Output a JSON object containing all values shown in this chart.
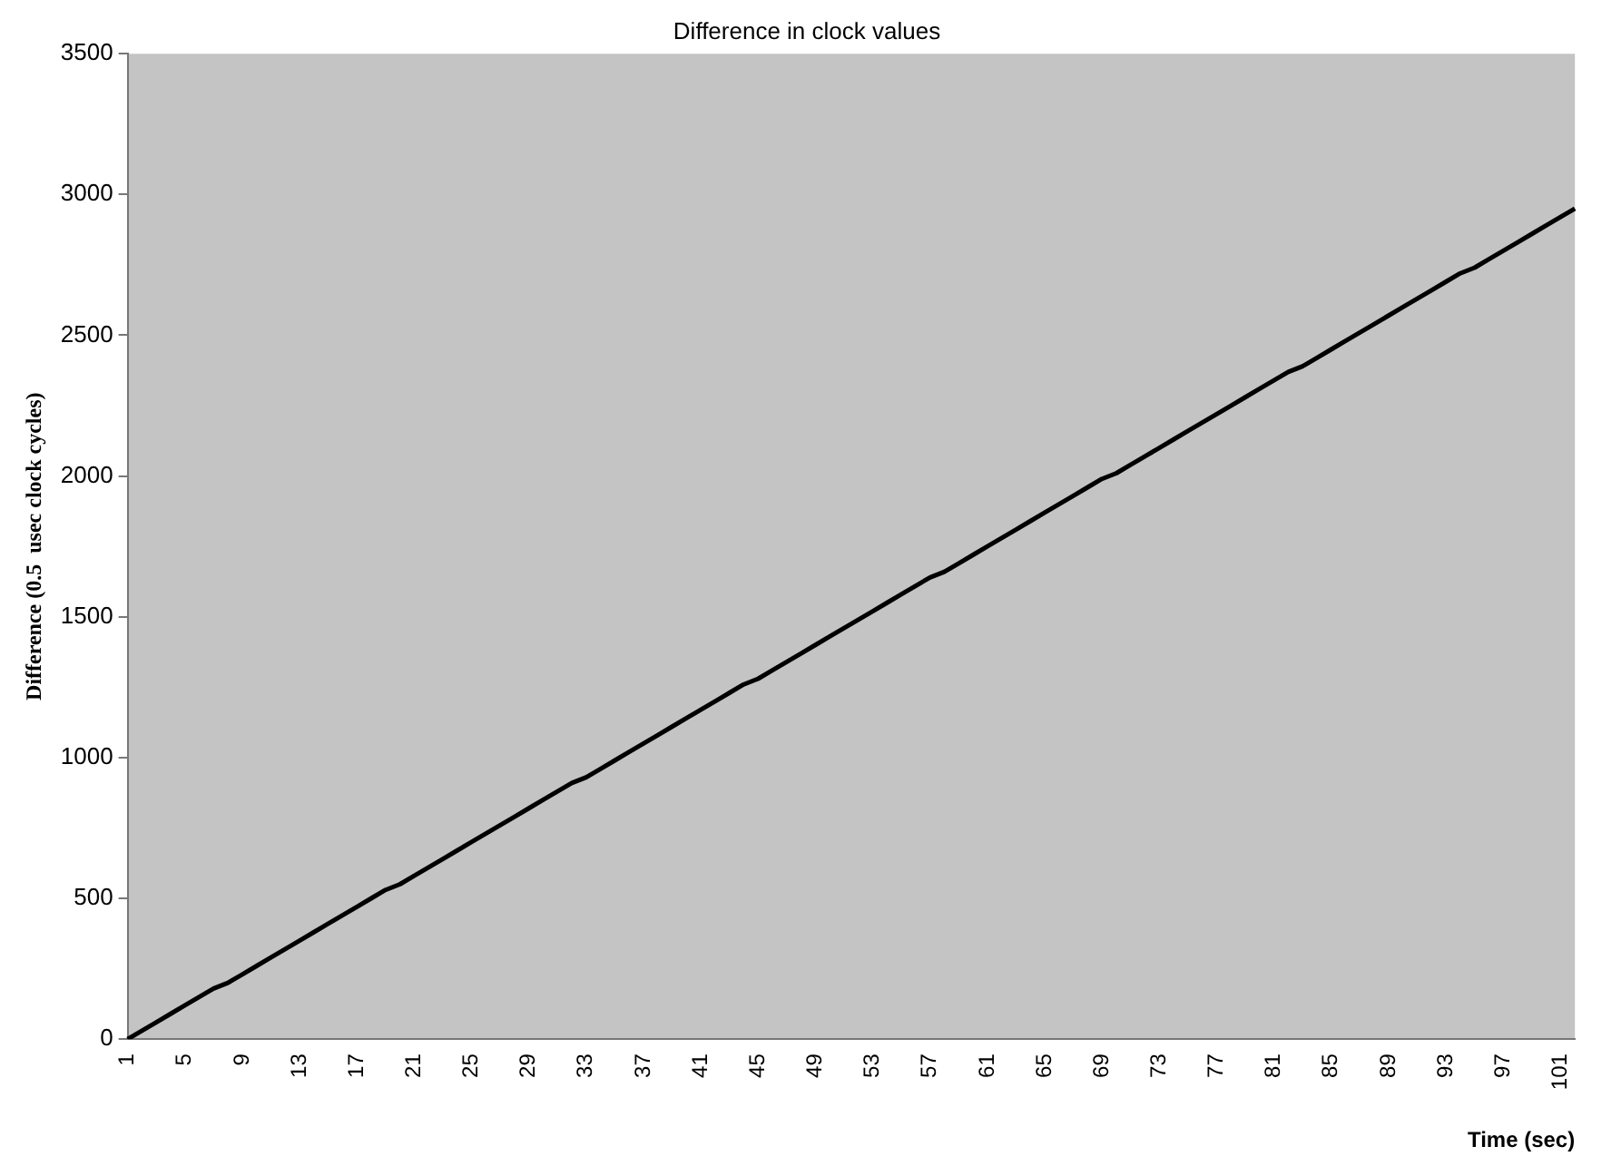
{
  "chart_data": {
    "type": "line",
    "title": "Difference in clock values",
    "xlabel": "Time (sec)",
    "ylabel": "Difference (0.5  usec clock cycles)",
    "categories": [
      "1",
      null,
      null,
      null,
      "5",
      null,
      null,
      null,
      "9",
      null,
      null,
      null,
      "13",
      null,
      null,
      null,
      "17",
      null,
      null,
      null,
      "21",
      null,
      null,
      null,
      "25",
      null,
      null,
      null,
      "29",
      null,
      null,
      null,
      "33",
      null,
      null,
      null,
      "37",
      null,
      null,
      null,
      "41",
      null,
      null,
      null,
      "45",
      null,
      null,
      null,
      "49",
      null,
      null,
      null,
      "53",
      null,
      null,
      null,
      "57",
      null,
      null,
      null,
      "61",
      null,
      null,
      null,
      "65",
      null,
      null,
      null,
      "69",
      null,
      null,
      null,
      "73",
      null,
      null,
      null,
      "77",
      null,
      null,
      null,
      "81",
      null,
      null,
      null,
      "85",
      null,
      null,
      null,
      "89",
      null,
      null,
      null,
      "93",
      null,
      null,
      null,
      "97",
      null,
      null,
      null,
      "101",
      null
    ],
    "series": [
      {
        "color": "#000000",
        "values": [
          0,
          30,
          60,
          90,
          120,
          150,
          180,
          200,
          230,
          260,
          290,
          320,
          350,
          380,
          410,
          440,
          470,
          500,
          530,
          550,
          580,
          610,
          640,
          670,
          700,
          730,
          760,
          790,
          820,
          850,
          880,
          910,
          930,
          960,
          990,
          1020,
          1050,
          1080,
          1110,
          1140,
          1170,
          1200,
          1230,
          1260,
          1280,
          1310,
          1340,
          1370,
          1400,
          1430,
          1460,
          1490,
          1520,
          1550,
          1580,
          1610,
          1640,
          1660,
          1690,
          1720,
          1750,
          1780,
          1810,
          1840,
          1870,
          1900,
          1930,
          1960,
          1990,
          2010,
          2040,
          2070,
          2100,
          2130,
          2160,
          2190,
          2220,
          2250,
          2280,
          2310,
          2340,
          2370,
          2390,
          2420,
          2450,
          2480,
          2510,
          2540,
          2570,
          2600,
          2630,
          2660,
          2690,
          2720,
          2740,
          2770,
          2800,
          2830,
          2860,
          2890,
          2920,
          2950
        ]
      }
    ],
    "ylim": [
      0,
      3500
    ],
    "yticks": [
      0,
      500,
      1000,
      1500,
      2000,
      2500,
      3000,
      3500
    ],
    "grid": false,
    "legend": false,
    "marker": "none",
    "line_style": "solid"
  }
}
